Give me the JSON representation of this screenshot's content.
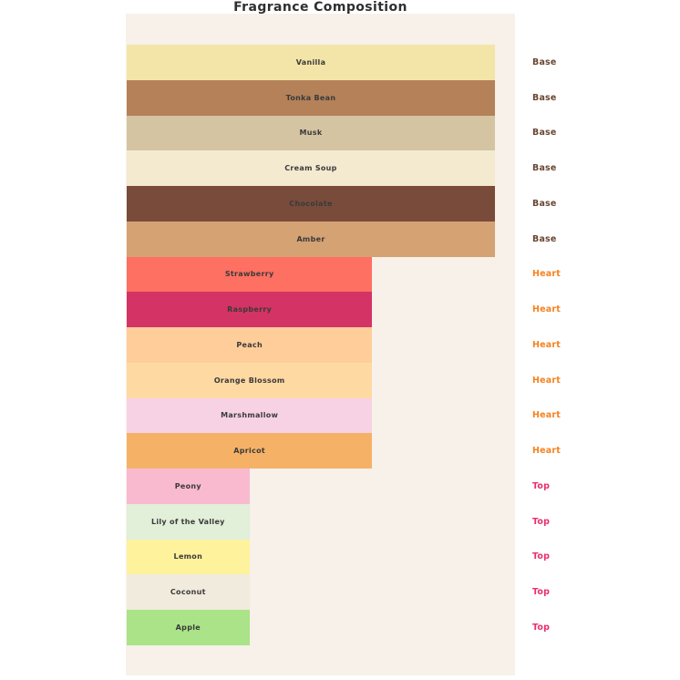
{
  "title": "Fragrance Composition",
  "colors": {
    "page_background": "#ffffff",
    "panel_background": "#f7f1ea",
    "bar_label_text": "#3a3a3a",
    "title_text": "#2f2f2f",
    "group_label_colors": {
      "Base": "#6b4632",
      "Heart": "#f5821f",
      "Top": "#e9306b"
    }
  },
  "chart_data": {
    "type": "bar",
    "orientation": "horizontal",
    "title": "Fragrance Composition",
    "xlabel": "",
    "ylabel": "",
    "xlim": [
      0,
      3.17
    ],
    "grid": false,
    "axes_visible": false,
    "legend_position": "right-of-bars-as-row-labels",
    "value_semantics": "note level: Base=3, Heart=2, Top=1",
    "categories": [
      "Vanilla",
      "Tonka Bean",
      "Musk",
      "Cream Soup",
      "Chocolate",
      "Amber",
      "Strawberry",
      "Raspberry",
      "Peach",
      "Orange Blossom",
      "Marshmallow",
      "Apricot",
      "Peony",
      "Lily of the Valley",
      "Lemon",
      "Coconut",
      "Apple"
    ],
    "values": [
      3,
      3,
      3,
      3,
      3,
      3,
      2,
      2,
      2,
      2,
      2,
      2,
      1,
      1,
      1,
      1,
      1
    ],
    "groups": [
      "Base",
      "Base",
      "Base",
      "Base",
      "Base",
      "Base",
      "Heart",
      "Heart",
      "Heart",
      "Heart",
      "Heart",
      "Heart",
      "Top",
      "Top",
      "Top",
      "Top",
      "Top"
    ],
    "bar_colors": [
      "#f3e5a8",
      "#b48159",
      "#d4c4a1",
      "#f4ead0",
      "#784b3a",
      "#d4a273",
      "#fe7061",
      "#d43365",
      "#ffcd99",
      "#ffd9a2",
      "#f7d2e4",
      "#f5b267",
      "#f9bacf",
      "#e2efd9",
      "#fff29d",
      "#f0ebdc",
      "#aae388"
    ]
  }
}
